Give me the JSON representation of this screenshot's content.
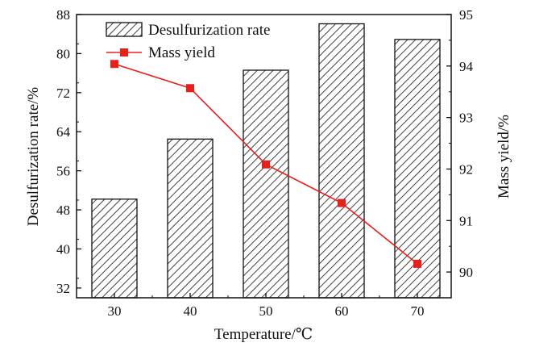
{
  "chart_data": {
    "type": "bar+line",
    "categories": [
      "30",
      "40",
      "50",
      "60",
      "70"
    ],
    "series": [
      {
        "name": "Desulfurization rate",
        "type": "bar",
        "axis": "left",
        "values": [
          50.2,
          62.5,
          76.6,
          86.1,
          82.9
        ],
        "pattern": "diagonal-hatch",
        "color": "#000000"
      },
      {
        "name": "Mass yield",
        "type": "line",
        "axis": "right",
        "values": [
          94.04,
          93.57,
          92.09,
          91.34,
          90.16
        ],
        "marker": "square",
        "color": "#e8201c"
      }
    ],
    "xlabel": "Temperature/℃",
    "ylabel_left": "Desulfurization rate/%",
    "ylabel_right": "Mass yield/%",
    "ylim_left": [
      30,
      88
    ],
    "yticks_left": [
      "32",
      "40",
      "48",
      "56",
      "64",
      "72",
      "80",
      "88"
    ],
    "ylim_right": [
      89.5,
      95
    ],
    "yticks_right": [
      "90",
      "91",
      "92",
      "93",
      "94",
      "95"
    ],
    "xticks": [
      "30",
      "40",
      "50",
      "60",
      "70"
    ],
    "grid": false,
    "legend_position": "top-left"
  }
}
